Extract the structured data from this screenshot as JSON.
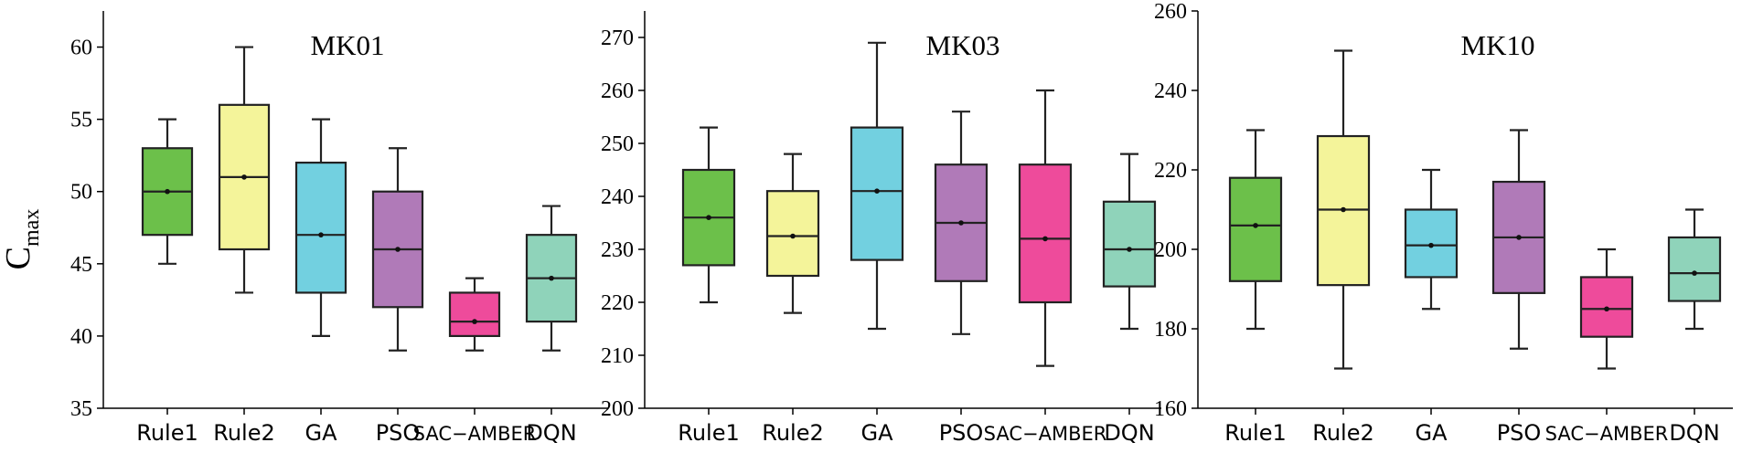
{
  "chart_data": {
    "type": "box",
    "ylabel_main": "C",
    "ylabel_sub": "max",
    "colors": [
      "#6CC04A",
      "#F4F49A",
      "#72D0E0",
      "#B07AB8",
      "#EE4B9B",
      "#8FD3BA"
    ],
    "panels": [
      {
        "title": "MK01",
        "categories": [
          "Rule1",
          "Rule2",
          "GA",
          "PSO",
          "SAC−AMBER",
          "DQN"
        ],
        "ylim": [
          35,
          62.5
        ],
        "yticks": [
          35,
          40,
          45,
          50,
          55,
          60
        ],
        "boxes": [
          {
            "min": 45,
            "q1": 47,
            "median": 50,
            "mean": 50,
            "q3": 53,
            "max": 55
          },
          {
            "min": 43,
            "q1": 46,
            "median": 51,
            "mean": 51,
            "q3": 56,
            "max": 60
          },
          {
            "min": 40,
            "q1": 43,
            "median": 47,
            "mean": 47,
            "q3": 52,
            "max": 55
          },
          {
            "min": 39,
            "q1": 42,
            "median": 46,
            "mean": 46,
            "q3": 50,
            "max": 53
          },
          {
            "min": 39,
            "q1": 40,
            "median": 41,
            "mean": 41,
            "q3": 43,
            "max": 44
          },
          {
            "min": 39,
            "q1": 41,
            "median": 44,
            "mean": 44,
            "q3": 47,
            "max": 49
          }
        ]
      },
      {
        "title": "MK03",
        "categories": [
          "Rule1",
          "Rule2",
          "GA",
          "PSO",
          "SAC−AMBER",
          "DQN"
        ],
        "ylim": [
          200,
          275
        ],
        "yticks": [
          200,
          210,
          220,
          230,
          240,
          250,
          260,
          270
        ],
        "boxes": [
          {
            "min": 220,
            "q1": 227,
            "median": 236,
            "mean": 236,
            "q3": 245,
            "max": 253
          },
          {
            "min": 218,
            "q1": 225,
            "median": 232.5,
            "mean": 232.5,
            "q3": 241,
            "max": 248
          },
          {
            "min": 215,
            "q1": 228,
            "median": 241,
            "mean": 241,
            "q3": 253,
            "max": 269
          },
          {
            "min": 214,
            "q1": 224,
            "median": 235,
            "mean": 235,
            "q3": 246,
            "max": 256
          },
          {
            "min": 208,
            "q1": 220,
            "median": 232,
            "mean": 232,
            "q3": 246,
            "max": 260
          },
          {
            "min": 215,
            "q1": 223,
            "median": 230,
            "mean": 230,
            "q3": 239,
            "max": 248
          }
        ]
      },
      {
        "title": "MK10",
        "categories": [
          "Rule1",
          "Rule2",
          "GA",
          "PSO",
          "SAC−AMBER",
          "DQN"
        ],
        "ylim": [
          160,
          260
        ],
        "yticks": [
          160,
          180,
          200,
          220,
          240,
          260
        ],
        "boxes": [
          {
            "min": 180,
            "q1": 192,
            "median": 206,
            "mean": 206,
            "q3": 218,
            "max": 230
          },
          {
            "min": 170,
            "q1": 191,
            "median": 210,
            "mean": 210,
            "q3": 228.5,
            "max": 250
          },
          {
            "min": 185,
            "q1": 193,
            "median": 201,
            "mean": 201,
            "q3": 210,
            "max": 220
          },
          {
            "min": 175,
            "q1": 189,
            "median": 203,
            "mean": 203,
            "q3": 217,
            "max": 230
          },
          {
            "min": 170,
            "q1": 178,
            "median": 185,
            "mean": 185,
            "q3": 193,
            "max": 200
          },
          {
            "min": 180,
            "q1": 187,
            "median": 194,
            "mean": 194,
            "q3": 203,
            "max": 210
          }
        ]
      }
    ]
  }
}
